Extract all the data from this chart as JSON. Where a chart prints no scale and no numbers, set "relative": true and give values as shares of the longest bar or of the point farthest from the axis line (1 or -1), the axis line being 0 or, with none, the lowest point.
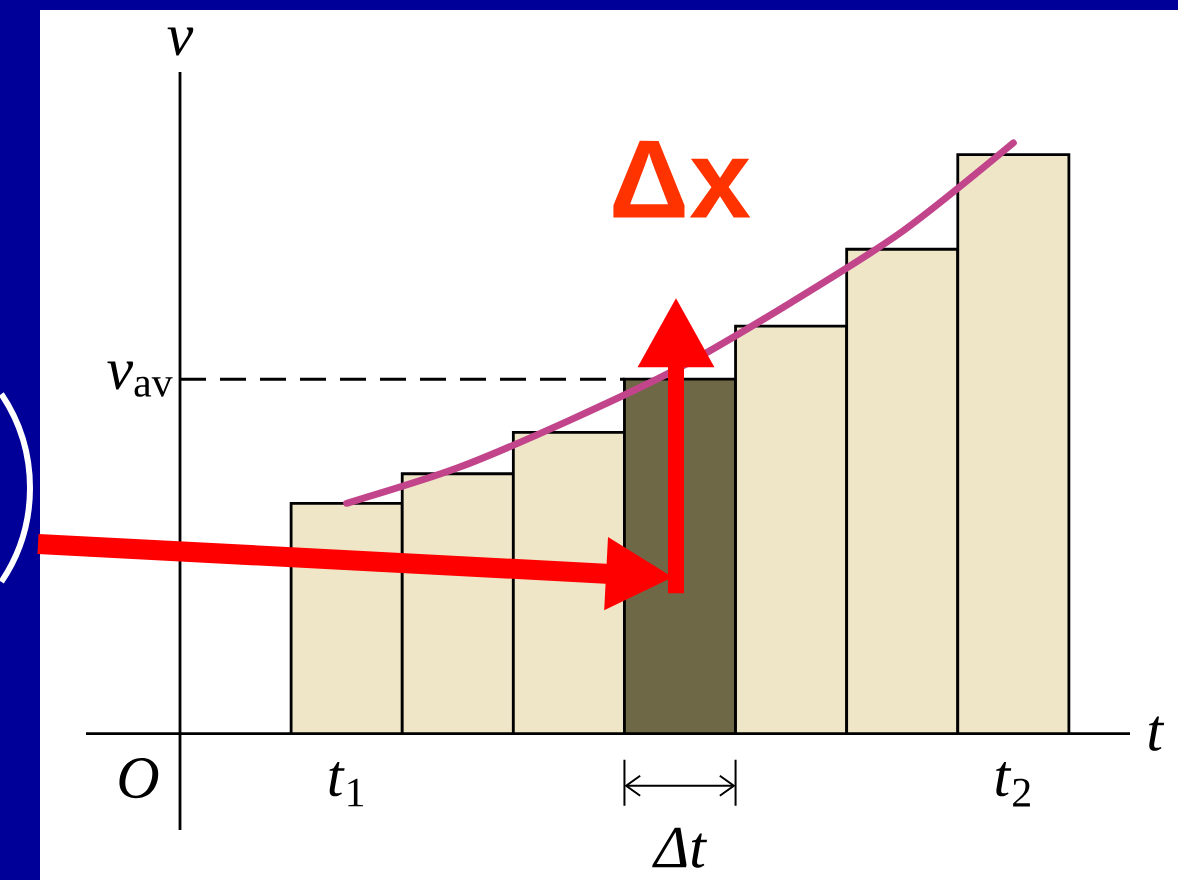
{
  "chart_data": {
    "type": "bar",
    "relative": true,
    "xlabel": "t",
    "ylabel": "v",
    "categories": [
      "*t*$_{1}$",
      null,
      null,
      null,
      null,
      null,
      "*t*$_{2}$"
    ],
    "series": [
      {
        "values": [
          0.39,
          0.44,
          0.51,
          0.6,
          0.69,
          0.82,
          0.98
        ],
        "colors": [
          "#efe6c8",
          "#efe6c8",
          "#efe6c8",
          "#6e6847",
          "#efe6c8",
          "#efe6c8",
          "#efe6c8"
        ]
      },
      {
        "type": "line",
        "color": "#c2458c",
        "values": [
          0.39,
          0.45,
          0.53,
          0.62,
          0.73,
          0.85,
          1.0
        ]
      }
    ],
    "ref_lines": [
      {
        "axis": "y",
        "value": 0.6,
        "label": "*v*$_{av}$",
        "line_style": "dashed",
        "color": "#000000"
      }
    ],
    "annotations": [
      "O",
      "Δx",
      "Δt"
    ]
  }
}
